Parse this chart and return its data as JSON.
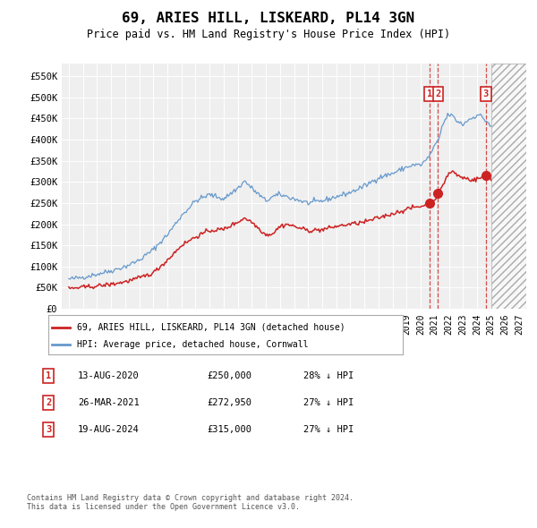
{
  "title": "69, ARIES HILL, LISKEARD, PL14 3GN",
  "subtitle": "Price paid vs. HM Land Registry's House Price Index (HPI)",
  "ylabel_ticks": [
    "£0",
    "£50K",
    "£100K",
    "£150K",
    "£200K",
    "£250K",
    "£300K",
    "£350K",
    "£400K",
    "£450K",
    "£500K",
    "£550K"
  ],
  "ytick_values": [
    0,
    50000,
    100000,
    150000,
    200000,
    250000,
    300000,
    350000,
    400000,
    450000,
    500000,
    550000
  ],
  "ylim": [
    0,
    580000
  ],
  "xlim_start": 1994.5,
  "xlim_end": 2027.5,
  "hpi_color": "#6699cc",
  "price_color": "#cc2222",
  "bg_color": "#efefef",
  "grid_color": "#ffffff",
  "sale_dates": [
    2020.617,
    2021.233,
    2024.633
  ],
  "sale_prices": [
    250000,
    272950,
    315000
  ],
  "sale_labels": [
    "1",
    "2",
    "3"
  ],
  "future_shade_start": 2025.0,
  "legend_entries": [
    "69, ARIES HILL, LISKEARD, PL14 3GN (detached house)",
    "HPI: Average price, detached house, Cornwall"
  ],
  "table_rows": [
    [
      "1",
      "13-AUG-2020",
      "£250,000",
      "28% ↓ HPI"
    ],
    [
      "2",
      "26-MAR-2021",
      "£272,950",
      "27% ↓ HPI"
    ],
    [
      "3",
      "19-AUG-2024",
      "£315,000",
      "27% ↓ HPI"
    ]
  ],
  "footnote": "Contains HM Land Registry data © Crown copyright and database right 2024.\nThis data is licensed under the Open Government Licence v3.0."
}
